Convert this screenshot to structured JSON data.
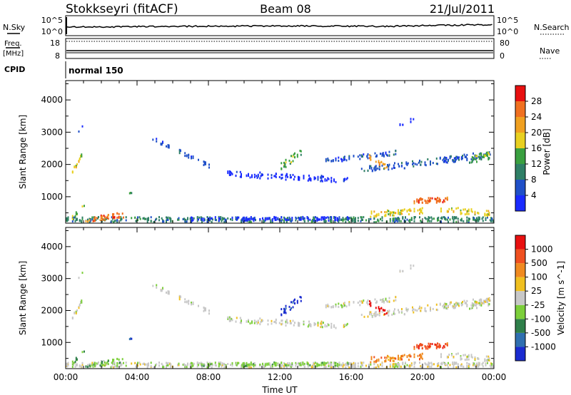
{
  "header": {
    "station": "Stokkseyri (fitACF)",
    "beam": "Beam 08",
    "date": "21/Jul/2011"
  },
  "top_panels": {
    "nsky_label": "N.Sky",
    "nsky_ticks": [
      "10^5",
      "10^0"
    ],
    "nsearch_label": "N.Search",
    "nsearch_ticks": [
      "10^5",
      "10^0"
    ],
    "freq_label": "Freq.",
    "freq_unit": "[MHz]",
    "freq_ticks": [
      "18",
      "8"
    ],
    "nave_label": "Nave",
    "nave_ticks": [
      "80",
      "0"
    ],
    "cpid_label": "CPID",
    "cpid_value": "normal 150"
  },
  "x_axis": {
    "label": "Time UT",
    "ticks": [
      "00:00",
      "04:00",
      "08:00",
      "12:00",
      "16:00",
      "20:00",
      "00:00"
    ]
  },
  "colors": {
    "power": [
      "#1a2bff",
      "#2050c8",
      "#2f7f66",
      "#3aa040",
      "#e8d020",
      "#f0a020",
      "#f07020",
      "#e81010"
    ],
    "velocity": [
      "#1a2bd0",
      "#2f6fb0",
      "#2f7f4a",
      "#7ccf3a",
      "#c8c8c8",
      "#f0c020",
      "#f08a20",
      "#f05020",
      "#e81010"
    ]
  },
  "chart_data": [
    {
      "type": "heatmap",
      "name": "Power",
      "ylabel": "Slant Range [km]",
      "yticks": [
        "1000",
        "2000",
        "3000",
        "4000"
      ],
      "xlim": [
        0,
        24
      ],
      "ylim": [
        180,
        4600
      ],
      "colorbar_label": "Power [dB]",
      "colorbar_ticks": [
        "4",
        "8",
        "12",
        "16",
        "20",
        "24",
        "28"
      ],
      "colorbar_range": [
        0,
        32
      ],
      "x": [
        0.1,
        0.3,
        0.5,
        0.9,
        1.2,
        1.6,
        2.1,
        2.6,
        3.2,
        3.6,
        4.2,
        5.0,
        6.0,
        7.0,
        8.0,
        9.0,
        10.0,
        11.0,
        12.0,
        12.5,
        13.0,
        13.5,
        14.0,
        15.0,
        15.5,
        16.0,
        16.5,
        17.0,
        17.5,
        18.0,
        18.5,
        19.0,
        19.5,
        20.0,
        20.5,
        21.0,
        21.5,
        22.0,
        22.5,
        23.0,
        23.5
      ],
      "y": [
        300,
        500,
        800,
        1100,
        1400,
        1700,
        2000,
        2300,
        2600,
        3000,
        3300
      ]
    },
    {
      "type": "heatmap",
      "name": "Velocity",
      "ylabel": "Slant Range [km]",
      "yticks": [
        "1000",
        "2000",
        "3000",
        "4000"
      ],
      "xlim": [
        0,
        24
      ],
      "ylim": [
        180,
        4600
      ],
      "colorbar_label": "Velocity [m s^-1]",
      "colorbar_ticks": [
        "1000",
        "500",
        "100",
        "25",
        "-25",
        "-100",
        "-500",
        "-1000"
      ],
      "x": [
        0.1,
        0.3,
        0.5,
        0.9,
        1.2,
        1.6,
        2.1,
        2.6,
        3.2,
        3.6,
        4.2,
        5.0,
        6.0,
        7.0,
        8.0,
        9.0,
        10.0,
        11.0,
        12.0,
        12.5,
        13.0,
        13.5,
        14.0,
        15.0,
        15.5,
        16.0,
        16.5,
        17.0,
        17.5,
        18.0,
        18.5,
        19.0,
        19.5,
        20.0,
        20.5,
        21.0,
        21.5,
        22.0,
        22.5,
        23.0,
        23.5
      ],
      "y": [
        300,
        500,
        800,
        1100,
        1400,
        1700,
        2000,
        2300,
        2600,
        3000,
        3300
      ]
    }
  ]
}
